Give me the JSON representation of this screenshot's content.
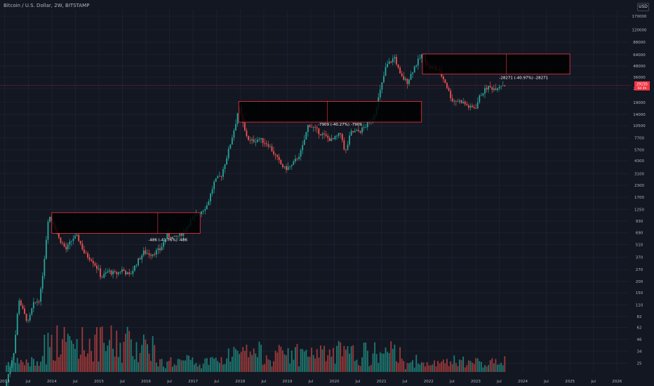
{
  "header": {
    "title": "Bitcoin / U.S. Dollar, 2W, BITSTAMP",
    "currency_button": "USD"
  },
  "colors": {
    "background": "#131722",
    "up": "#26a69a",
    "down": "#ef5350",
    "vol_up": "#1e7a72",
    "vol_down": "#9c3a3a",
    "box_border": "#f23645",
    "box_fill": "#000000",
    "price_line": "#f23645",
    "axis_text": "#b2b5be"
  },
  "chart_data": {
    "type": "candlestick",
    "y_scale": "log",
    "ylim": [
      20,
      200000
    ],
    "y_ticks": [
      170000,
      120000,
      88000,
      64000,
      48000,
      36000,
      27000,
      19000,
      14000,
      10500,
      7700,
      5700,
      4300,
      3100,
      2300,
      1700,
      1250,
      930,
      690,
      510,
      370,
      270,
      200,
      150,
      110,
      82,
      62,
      46,
      34,
      25
    ],
    "x_ticks": [
      {
        "label": "2013",
        "t": 2013.0
      },
      {
        "label": "Jul",
        "t": 2013.5
      },
      {
        "label": "2014",
        "t": 2014.0
      },
      {
        "label": "Jul",
        "t": 2014.5
      },
      {
        "label": "2015",
        "t": 2015.0
      },
      {
        "label": "Jul",
        "t": 2015.5
      },
      {
        "label": "2016",
        "t": 2016.0
      },
      {
        "label": "Jul",
        "t": 2016.5
      },
      {
        "label": "2017",
        "t": 2017.0
      },
      {
        "label": "Jul",
        "t": 2017.5
      },
      {
        "label": "2018",
        "t": 2018.0
      },
      {
        "label": "Jul",
        "t": 2018.5
      },
      {
        "label": "2019",
        "t": 2019.0
      },
      {
        "label": "Jul",
        "t": 2019.5
      },
      {
        "label": "2020",
        "t": 2020.0
      },
      {
        "label": "Jul",
        "t": 2020.5
      },
      {
        "label": "2021",
        "t": 2021.0
      },
      {
        "label": "Jul",
        "t": 2021.5
      },
      {
        "label": "2022",
        "t": 2022.0
      },
      {
        "label": "Jul",
        "t": 2022.5
      },
      {
        "label": "2023",
        "t": 2023.0
      },
      {
        "label": "Jul",
        "t": 2023.5
      },
      {
        "label": "2024",
        "t": 2024.0
      },
      {
        "label": "Jul",
        "t": 2024.5
      },
      {
        "label": "2025",
        "t": 2025.0
      },
      {
        "label": "Jul",
        "t": 2025.5
      },
      {
        "label": "2026",
        "t": 2026.0
      }
    ],
    "price_path": [
      [
        2013.0,
        13
      ],
      [
        2013.2,
        35
      ],
      [
        2013.3,
        130
      ],
      [
        2013.4,
        90
      ],
      [
        2013.5,
        70
      ],
      [
        2013.6,
        110
      ],
      [
        2013.75,
        130
      ],
      [
        2013.85,
        400
      ],
      [
        2013.93,
        1100
      ],
      [
        2014.05,
        850
      ],
      [
        2014.15,
        600
      ],
      [
        2014.3,
        450
      ],
      [
        2014.45,
        600
      ],
      [
        2014.55,
        620
      ],
      [
        2014.7,
        400
      ],
      [
        2014.85,
        350
      ],
      [
        2015.0,
        260
      ],
      [
        2015.05,
        220
      ],
      [
        2015.2,
        260
      ],
      [
        2015.35,
        240
      ],
      [
        2015.5,
        270
      ],
      [
        2015.65,
        230
      ],
      [
        2015.8,
        320
      ],
      [
        2015.95,
        420
      ],
      [
        2016.1,
        400
      ],
      [
        2016.3,
        450
      ],
      [
        2016.45,
        650
      ],
      [
        2016.6,
        600
      ],
      [
        2016.8,
        700
      ],
      [
        2016.95,
        950
      ],
      [
        2017.1,
        1100
      ],
      [
        2017.3,
        1400
      ],
      [
        2017.45,
        2500
      ],
      [
        2017.6,
        3000
      ],
      [
        2017.75,
        5500
      ],
      [
        2017.9,
        11000
      ],
      [
        2017.97,
        17000
      ],
      [
        2018.1,
        9000
      ],
      [
        2018.2,
        7000
      ],
      [
        2018.4,
        7500
      ],
      [
        2018.6,
        6500
      ],
      [
        2018.85,
        4000
      ],
      [
        2018.95,
        3500
      ],
      [
        2019.1,
        3800
      ],
      [
        2019.3,
        5500
      ],
      [
        2019.45,
        11000
      ],
      [
        2019.6,
        9500
      ],
      [
        2019.8,
        8000
      ],
      [
        2019.95,
        7200
      ],
      [
        2020.15,
        8700
      ],
      [
        2020.22,
        5000
      ],
      [
        2020.35,
        8800
      ],
      [
        2020.55,
        9200
      ],
      [
        2020.7,
        10800
      ],
      [
        2020.85,
        14000
      ],
      [
        2021.0,
        29000
      ],
      [
        2021.1,
        48000
      ],
      [
        2021.28,
        60000
      ],
      [
        2021.4,
        37000
      ],
      [
        2021.55,
        32000
      ],
      [
        2021.7,
        47000
      ],
      [
        2021.87,
        65000
      ],
      [
        2022.0,
        47000
      ],
      [
        2022.2,
        44000
      ],
      [
        2022.35,
        32000
      ],
      [
        2022.5,
        20000
      ],
      [
        2022.7,
        19500
      ],
      [
        2022.88,
        16500
      ],
      [
        2023.0,
        16800
      ],
      [
        2023.1,
        23000
      ],
      [
        2023.25,
        28000
      ],
      [
        2023.4,
        27000
      ],
      [
        2023.55,
        30000
      ],
      [
        2023.65,
        29300
      ]
    ],
    "current_price_label": "29155",
    "current_price_sub": "6d 4h",
    "current_price": 29155,
    "boxes": [
      {
        "t0": 2014.0,
        "t1": 2017.15,
        "p_high": 1150,
        "p_low": 680,
        "t_mid": 2016.25,
        "label": "-486 (-41.76%) -486",
        "label_t": 2016.05,
        "label_p": 560
      },
      {
        "t0": 2017.97,
        "t1": 2021.85,
        "p_high": 19500,
        "p_low": 11500,
        "t_mid": 2019.85,
        "label": "-7909 (-40.27%) -7909",
        "label_t": 2019.65,
        "label_p": 10500
      },
      {
        "t0": 2021.87,
        "t1": 2025.0,
        "p_high": 65000,
        "p_low": 39000,
        "t_mid": 2023.65,
        "label": "-28271 (-40.97%) -28271",
        "label_t": 2023.5,
        "label_p": 34500
      }
    ]
  }
}
